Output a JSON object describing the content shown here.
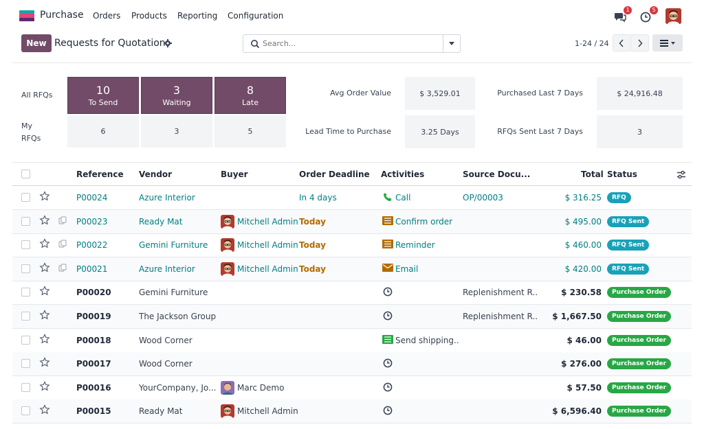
{
  "app": {
    "name": "Purchase"
  },
  "menu": [
    "Orders",
    "Products",
    "Reporting",
    "Configuration"
  ],
  "nav": {
    "messages_count": "1",
    "activities_count": "5"
  },
  "control": {
    "new_label": "New",
    "title": "Requests for Quotation",
    "search_placeholder": "Search...",
    "pager": "1-24 / 24"
  },
  "dashboard": {
    "all_rfqs_label": "All RFQs",
    "my_rfqs_label": "My RFQs",
    "tiles": [
      {
        "num": "10",
        "label": "To Send",
        "mine": "6"
      },
      {
        "num": "3",
        "label": "Waiting",
        "mine": "3"
      },
      {
        "num": "8",
        "label": "Late",
        "mine": "5"
      }
    ],
    "kpis": [
      {
        "label": "Avg Order Value",
        "value": "$ 3,529.01"
      },
      {
        "label": "Purchased Last 7 Days",
        "value": "$ 24,916.48"
      },
      {
        "label": "Lead Time to Purchase",
        "value": "3.25 Days"
      },
      {
        "label": "RFQs Sent Last 7 Days",
        "value": "3"
      }
    ]
  },
  "table": {
    "columns": {
      "reference": "Reference",
      "vendor": "Vendor",
      "buyer": "Buyer",
      "deadline": "Order Deadline",
      "activities": "Activities",
      "source": "Source Docu...",
      "total": "Total",
      "status": "Status"
    },
    "rows": [
      {
        "ref": "P00024",
        "vendor": "Azure Interior",
        "buyer": "",
        "deadline": "In 4 days",
        "activity": "Call",
        "activity_icon": "phone-icon",
        "source": "OP/00003",
        "total": "$ 316.25",
        "status": "RFQ",
        "state": "rfq"
      },
      {
        "ref": "P00023",
        "vendor": "Ready Mat",
        "buyer": "Mitchell Admin",
        "deadline": "Today",
        "activity": "Confirm order",
        "activity_icon": "list-icon",
        "source": "",
        "total": "$ 495.00",
        "status": "RFQ Sent",
        "state": "rfq"
      },
      {
        "ref": "P00022",
        "vendor": "Gemini Furniture",
        "buyer": "Mitchell Admin",
        "deadline": "Today",
        "activity": "Reminder",
        "activity_icon": "list-icon",
        "source": "",
        "total": "$ 460.00",
        "status": "RFQ Sent",
        "state": "rfq"
      },
      {
        "ref": "P00021",
        "vendor": "Azure Interior",
        "buyer": "Mitchell Admin",
        "deadline": "Today",
        "activity": "Email",
        "activity_icon": "envelope-icon",
        "source": "",
        "total": "$ 420.00",
        "status": "RFQ Sent",
        "state": "rfq"
      },
      {
        "ref": "P00020",
        "vendor": "Gemini Furniture",
        "buyer": "",
        "deadline": "",
        "activity": "",
        "activity_icon": "clock-icon",
        "source": "Replenishment R...",
        "total": "$ 230.58",
        "status": "Purchase Order",
        "state": "po"
      },
      {
        "ref": "P00019",
        "vendor": "The Jackson Group",
        "buyer": "",
        "deadline": "",
        "activity": "",
        "activity_icon": "clock-icon",
        "source": "Replenishment R...",
        "total": "$ 1,667.50",
        "status": "Purchase Order",
        "state": "po"
      },
      {
        "ref": "P00018",
        "vendor": "Wood Corner",
        "buyer": "",
        "deadline": "",
        "activity": "Send shipping...",
        "activity_icon": "list-green-icon",
        "source": "",
        "total": "$ 46.00",
        "status": "Purchase Order",
        "state": "po"
      },
      {
        "ref": "P00017",
        "vendor": "Wood Corner",
        "buyer": "",
        "deadline": "",
        "activity": "",
        "activity_icon": "clock-icon",
        "source": "",
        "total": "$ 276.00",
        "status": "Purchase Order",
        "state": "po"
      },
      {
        "ref": "P00016",
        "vendor": "YourCompany, Jo...",
        "buyer": "Marc Demo",
        "deadline": "",
        "activity": "",
        "activity_icon": "clock-icon",
        "source": "",
        "total": "$ 57.50",
        "status": "Purchase Order",
        "state": "po"
      },
      {
        "ref": "P00015",
        "vendor": "Ready Mat",
        "buyer": "Mitchell Admin",
        "deadline": "",
        "activity": "",
        "activity_icon": "clock-icon",
        "source": "",
        "total": "$ 6,596.40",
        "status": "Purchase Order",
        "state": "po"
      }
    ]
  }
}
